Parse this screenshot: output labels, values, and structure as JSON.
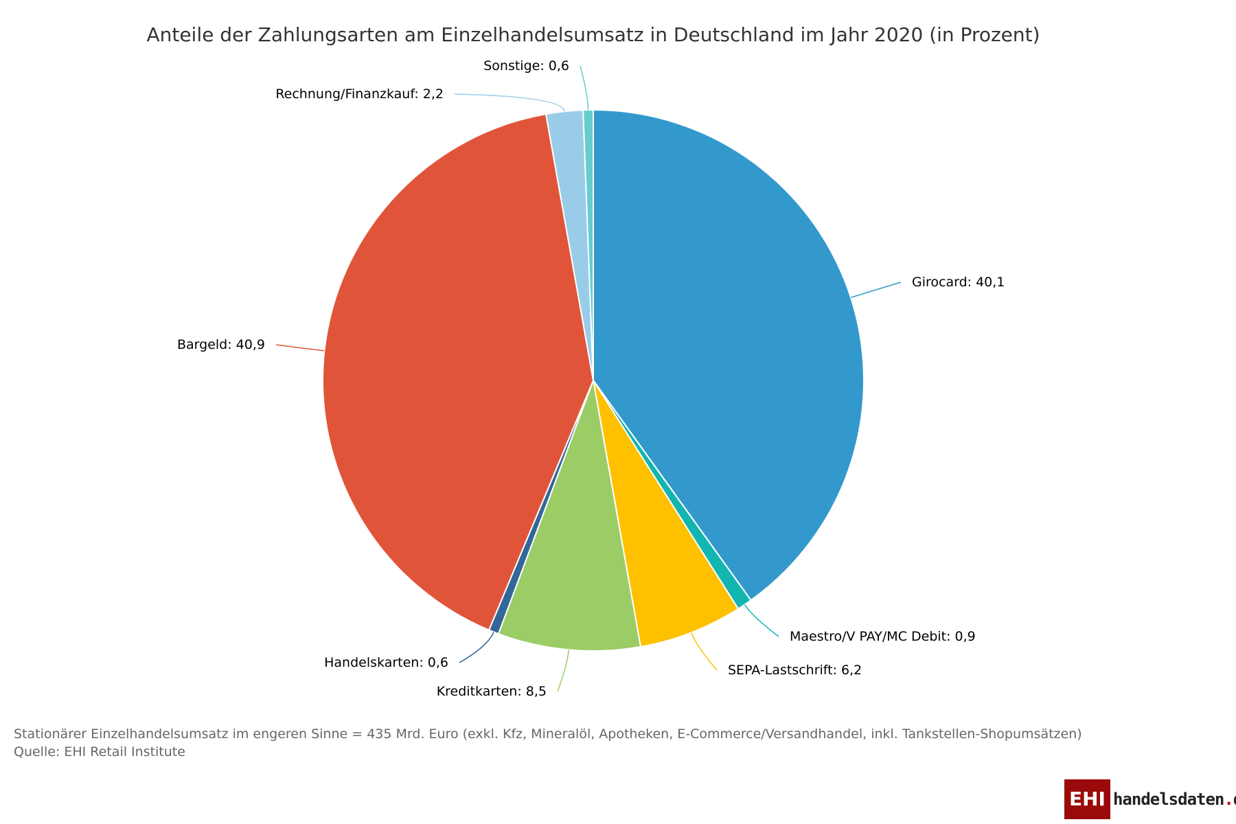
{
  "chart_data": {
    "type": "pie",
    "title": "Anteile der Zahlungsarten am Einzelhandelsumsatz in Deutschland im Jahr 2020 (in Prozent)",
    "slices": [
      {
        "name": "Girocard",
        "value": 40.1,
        "label": "Girocard: 40,1",
        "color": "#3399cc"
      },
      {
        "name": "Maestro/V PAY/MC Debit",
        "value": 0.9,
        "label": "Maestro/V PAY/MC Debit: 0,9",
        "color": "#13b5b1"
      },
      {
        "name": "SEPA-Lastschrift",
        "value": 6.2,
        "label": "SEPA-Lastschrift: 6,2",
        "color": "#ffc000"
      },
      {
        "name": "Kreditkarten",
        "value": 8.5,
        "label": "Kreditkarten: 8,5",
        "color": "#9bcc66"
      },
      {
        "name": "Handelskarten",
        "value": 0.6,
        "label": "Handelskarten: 0,6",
        "color": "#336699"
      },
      {
        "name": "Bargeld",
        "value": 40.9,
        "label": "Bargeld: 40,9",
        "color": "#e0553a"
      },
      {
        "name": "Rechnung/Finanzkauf",
        "value": 2.2,
        "label": "Rechnung/Finanzkauf: 2,2",
        "color": "#99cce8"
      },
      {
        "name": "Sonstige",
        "value": 0.6,
        "label": "Sonstige: 0,6",
        "color": "#66cccc"
      }
    ]
  },
  "footnote": "Stationärer Einzelhandelsumsatz im engeren Sinne = 435 Mrd. Euro (exkl. Kfz, Mineralöl, Apotheken, E-Commerce/Versandhandel, inkl. Tankstellen-Shopumsätzen)",
  "source": "Quelle: EHI Retail Institute",
  "logo": {
    "box": "EHI",
    "site": "handelsdaten",
    "dot": ".",
    "tld": "de"
  }
}
